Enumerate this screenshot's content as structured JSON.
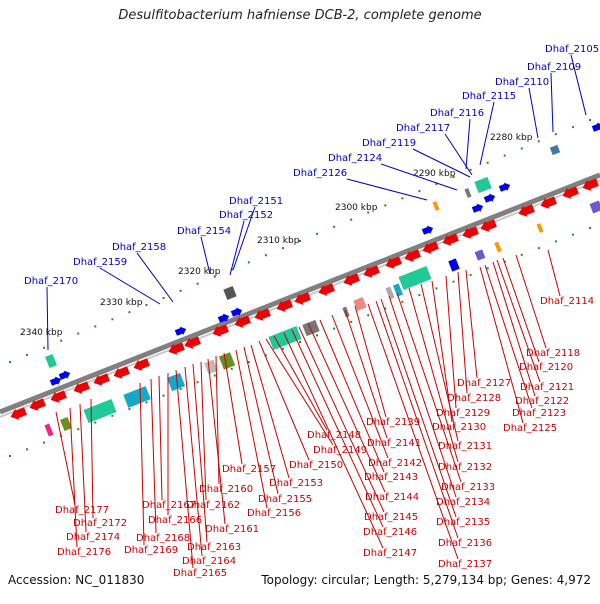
{
  "title": "Desulfitobacterium hafniense DCB-2, complete genome",
  "accession": "Accession: NC_011830",
  "summary": "Topology: circular; Length: 5,279,134 bp; Genes: 4,972",
  "kbp_labels": [
    "2280 kbp",
    "2290 kbp",
    "2300 kbp",
    "2310 kbp",
    "2320 kbp",
    "2330 kbp",
    "2340 kbp"
  ],
  "genes_above": [
    "Dhaf_2105",
    "Dhaf_2109",
    "Dhaf_2110",
    "Dhaf_2115",
    "Dhaf_2116",
    "Dhaf_2117",
    "Dhaf_2119",
    "Dhaf_2124",
    "Dhaf_2126",
    "Dhaf_2151",
    "Dhaf_2152",
    "Dhaf_2154",
    "Dhaf_2158",
    "Dhaf_2159",
    "Dhaf_2170"
  ],
  "genes_below": [
    "Dhaf_2114",
    "Dhaf_2118",
    "Dhaf_2120",
    "Dhaf_2121",
    "Dhaf_2122",
    "Dhaf_2123",
    "Dhaf_2125",
    "Dhaf_2127",
    "Dhaf_2128",
    "Dhaf_2129",
    "Dhaf_2130",
    "Dhaf_2131",
    "Dhaf_2132",
    "Dhaf_2133",
    "Dhaf_2134",
    "Dhaf_2135",
    "Dhaf_2136",
    "Dhaf_2137",
    "Dhaf_2139",
    "Dhaf_2141",
    "Dhaf_2142",
    "Dhaf_2143",
    "Dhaf_2144",
    "Dhaf_2145",
    "Dhaf_2146",
    "Dhaf_2147",
    "Dhaf_2148",
    "Dhaf_2149",
    "Dhaf_2150",
    "Dhaf_2153",
    "Dhaf_2155",
    "Dhaf_2156",
    "Dhaf_2157",
    "Dhaf_2160",
    "Dhaf_2161",
    "Dhaf_2162",
    "Dhaf_2163",
    "Dhaf_2164",
    "Dhaf_2165",
    "Dhaf_2166",
    "Dhaf_2167",
    "Dhaf_2168",
    "Dhaf_2169",
    "Dhaf_2172",
    "Dhaf_2174",
    "Dhaf_2176",
    "Dhaf_2177"
  ],
  "colors": {
    "above_label": "#0000cc",
    "below_label": "#cc0000",
    "backbone": "#808080",
    "tick": "#228b22",
    "red": "#ee0000",
    "blue": "#0000ee",
    "teal": "#20c997",
    "cyan": "#16a8c8",
    "olive": "#6b8e23",
    "orange": "#ff9900",
    "gray": "#777777",
    "purple": "#6a5acd",
    "pink": "#ee2288"
  }
}
